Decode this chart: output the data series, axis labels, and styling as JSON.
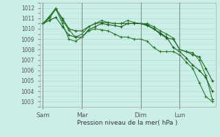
{
  "bg_color": "#cceee8",
  "grid_color": "#aaddcc",
  "line_color_dark": "#1a5e1a",
  "line_color_mid": "#2a7a2a",
  "xlabel": "Pression niveau de la mer( hPa )",
  "ylim": [
    1002.5,
    1012.5
  ],
  "yticks": [
    1003,
    1004,
    1005,
    1006,
    1007,
    1008,
    1009,
    1010,
    1011,
    1012
  ],
  "xtick_labels": [
    "Sam",
    "Mar",
    "Dim",
    "Lun"
  ],
  "xtick_positions": [
    0,
    6,
    15,
    21
  ],
  "total_points": 27,
  "series1": [
    1010.5,
    1011.1,
    1011.9,
    1011.0,
    1010.0,
    1009.8,
    1009.8,
    1010.2,
    1010.5,
    1010.6,
    1010.6,
    1010.5,
    1010.5,
    1010.5,
    1010.5,
    1010.5,
    1010.4,
    1010.0,
    1009.5,
    1009.1,
    1009.0,
    1008.0,
    1007.8,
    1007.5,
    1007.3,
    1006.2,
    1005.0
  ],
  "series2": [
    1010.5,
    1011.2,
    1012.0,
    1010.8,
    1009.9,
    1009.2,
    1009.5,
    1010.2,
    1010.5,
    1010.8,
    1010.6,
    1010.5,
    1010.5,
    1010.8,
    1010.6,
    1010.5,
    1010.5,
    1010.2,
    1009.8,
    1009.5,
    1009.1,
    1008.0,
    1007.8,
    1007.7,
    1007.0,
    1005.5,
    1003.2
  ],
  "series3": [
    1010.5,
    1010.8,
    1011.1,
    1010.2,
    1009.4,
    1009.2,
    1009.2,
    1009.9,
    1010.2,
    1010.5,
    1010.4,
    1010.3,
    1010.2,
    1010.5,
    1010.5,
    1010.5,
    1010.3,
    1010.0,
    1009.6,
    1009.2,
    1008.2,
    1007.8,
    1007.2,
    1006.5,
    1006.0,
    1005.3,
    1004.0
  ],
  "series4": [
    1010.5,
    1011.0,
    1011.9,
    1010.5,
    1009.0,
    1008.8,
    1009.2,
    1009.8,
    1010.0,
    1009.9,
    1009.8,
    1009.5,
    1009.2,
    1009.2,
    1009.0,
    1009.0,
    1008.8,
    1008.2,
    1007.8,
    1007.8,
    1007.8,
    1007.5,
    1006.8,
    1006.2,
    1004.8,
    1003.5,
    1003.0
  ]
}
